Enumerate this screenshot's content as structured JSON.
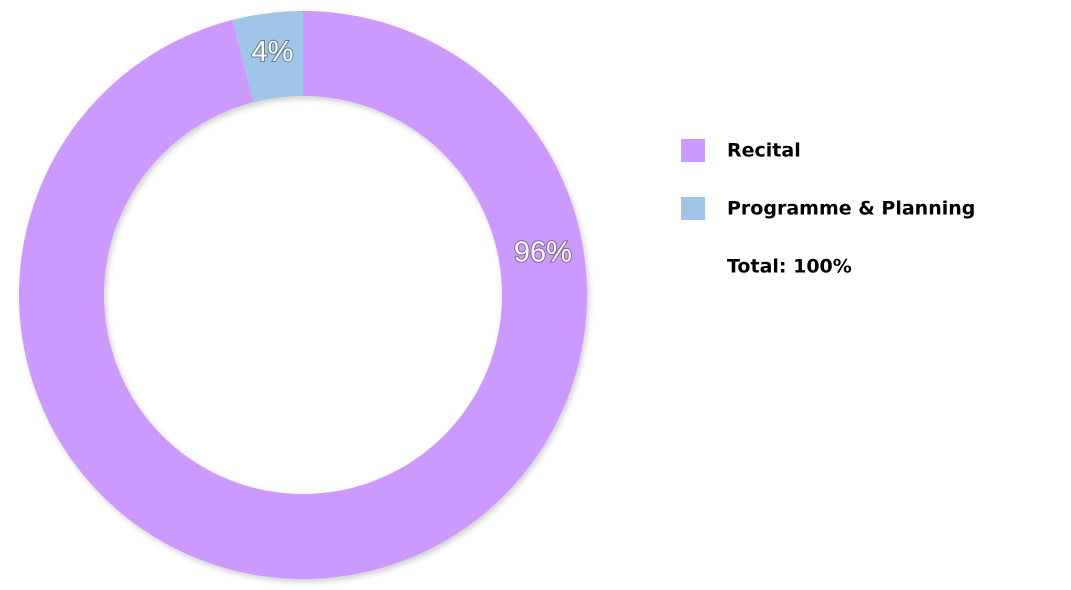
{
  "chart_data": {
    "type": "donut",
    "categories": [
      "Recital",
      "Programme & Planning"
    ],
    "values": [
      96,
      4
    ],
    "value_labels": [
      "96%",
      "4%"
    ],
    "colors": [
      "#cc99ff",
      "#9fc5e8"
    ],
    "total_label": "Total: 100%"
  }
}
